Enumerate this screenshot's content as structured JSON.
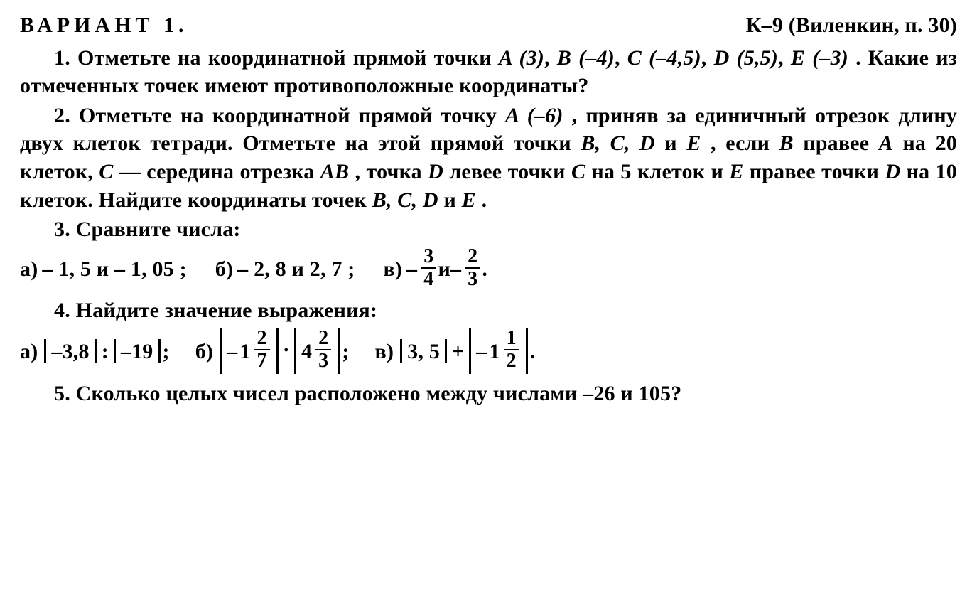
{
  "header": {
    "variant": "ВАРИАНТ 1.",
    "ref": "К–9 (Виленкин, п. 30)"
  },
  "q1": {
    "num": "1.",
    "t1": "Отметьте на координатной прямой точки ",
    "pts": {
      "A": "A (3)",
      "B": "B (–4)",
      "C": "C (–4,5)",
      "D": "D (5,5)",
      "E": "E (–3)"
    },
    "sep": ", ",
    "t2": ". Какие из отмеченных точек имеют противоположные координаты?"
  },
  "q2": {
    "num": "2.",
    "t1": "Отметьте на координатной прямой точку ",
    "A": "A (–6)",
    "t2": ", приняв за единичный отрезок длину двух клеток тетради. Отметьте на этой прямой точки ",
    "list": "B, C, D",
    "and": " и ",
    "E": "E",
    "t3": ", если ",
    "B": "B",
    "t4": " правее ",
    "A2": "A",
    "t5": " на 20 клеток, ",
    "C": "C",
    "t6": " — середина отрезка ",
    "AB": "AB",
    "t7": ", точка ",
    "D": "D",
    "t8": " левее точки ",
    "C2": "C",
    "t9": " на 5 клеток и ",
    "E2": "E",
    "t10": " правее точки ",
    "D2": "D",
    "t11": " на 10 клеток. Найдите координаты точек ",
    "list2": "B, C, D",
    "E3": "E",
    "t12": "."
  },
  "q3": {
    "num": "3.",
    "title": "Сравните числа:",
    "a": {
      "label": "а)",
      "text": "– 1, 5 и – 1, 05 ;"
    },
    "b": {
      "label": "б)",
      "text": "– 2, 8 и 2, 7 ;"
    },
    "c": {
      "label": "в)",
      "minus1": "–",
      "f1": {
        "num": "3",
        "den": "4"
      },
      "and": " и ",
      "minus2": "–",
      "f2": {
        "num": "2",
        "den": "3"
      },
      "dot": "."
    }
  },
  "q4": {
    "num": "4.",
    "title": "Найдите значение выражения:",
    "a": {
      "label": "а)",
      "v1": "–3,8",
      "op": ":",
      "v2": "–19",
      "end": ";"
    },
    "b": {
      "label": "б)",
      "m1": {
        "sign": "–",
        "whole": "1",
        "num": "2",
        "den": "7"
      },
      "op": "·",
      "m2": {
        "whole": "4",
        "num": "2",
        "den": "3"
      },
      "end": ";"
    },
    "c": {
      "label": "в)",
      "v1": "3, 5",
      "op": "+",
      "m2": {
        "sign": "–",
        "whole": "1",
        "num": "1",
        "den": "2"
      },
      "end": "."
    }
  },
  "q5": {
    "num": "5.",
    "t1": "Сколько целых чисел расположено между числами –26 и 105?"
  }
}
